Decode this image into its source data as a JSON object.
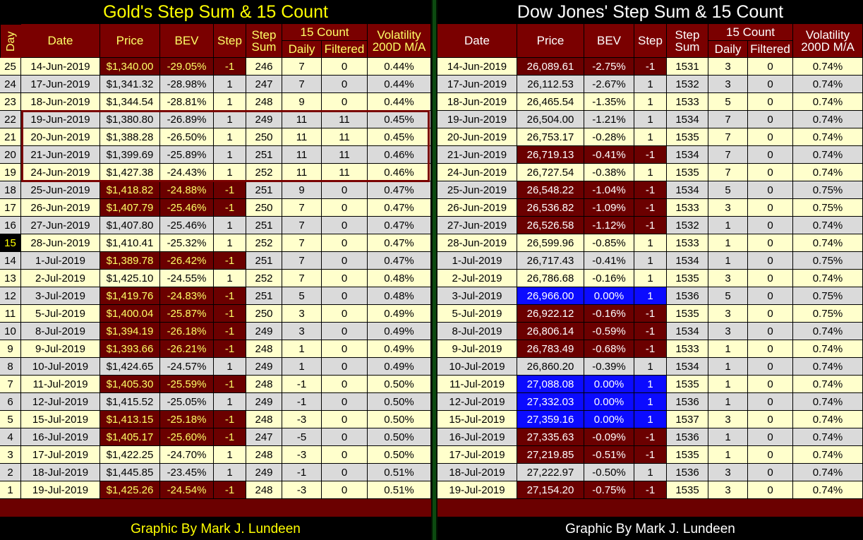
{
  "chart_data": [
    {
      "type": "table",
      "title": "Gold's Step Sum & 15 Count",
      "headers": {
        "day": "Day",
        "date": "Date",
        "price": "Price",
        "bev": "BEV",
        "step": "Step",
        "step_sum": "Step Sum",
        "fifteen_count": "15 Count",
        "daily": "Daily",
        "filtered": "Filtered",
        "volatility": "Volatility 200D M/A"
      },
      "rows": [
        {
          "day": "25",
          "date": "14-Jun-2019",
          "price": "$1,340.00",
          "bev": "-29.05%",
          "step": "-1",
          "sum": "246",
          "daily": "7",
          "filtered": "0",
          "vol": "0.44%"
        },
        {
          "day": "24",
          "date": "17-Jun-2019",
          "price": "$1,341.32",
          "bev": "-28.98%",
          "step": "1",
          "sum": "247",
          "daily": "7",
          "filtered": "0",
          "vol": "0.44%"
        },
        {
          "day": "23",
          "date": "18-Jun-2019",
          "price": "$1,344.54",
          "bev": "-28.81%",
          "step": "1",
          "sum": "248",
          "daily": "9",
          "filtered": "0",
          "vol": "0.44%"
        },
        {
          "day": "22",
          "date": "19-Jun-2019",
          "price": "$1,380.80",
          "bev": "-26.89%",
          "step": "1",
          "sum": "249",
          "daily": "11",
          "filtered": "11",
          "vol": "0.45%"
        },
        {
          "day": "21",
          "date": "20-Jun-2019",
          "price": "$1,388.28",
          "bev": "-26.50%",
          "step": "1",
          "sum": "250",
          "daily": "11",
          "filtered": "11",
          "vol": "0.45%"
        },
        {
          "day": "20",
          "date": "21-Jun-2019",
          "price": "$1,399.69",
          "bev": "-25.89%",
          "step": "1",
          "sum": "251",
          "daily": "11",
          "filtered": "11",
          "vol": "0.46%"
        },
        {
          "day": "19",
          "date": "24-Jun-2019",
          "price": "$1,427.38",
          "bev": "-24.43%",
          "step": "1",
          "sum": "252",
          "daily": "11",
          "filtered": "11",
          "vol": "0.46%"
        },
        {
          "day": "18",
          "date": "25-Jun-2019",
          "price": "$1,418.82",
          "bev": "-24.88%",
          "step": "-1",
          "sum": "251",
          "daily": "9",
          "filtered": "0",
          "vol": "0.47%"
        },
        {
          "day": "17",
          "date": "26-Jun-2019",
          "price": "$1,407.79",
          "bev": "-25.46%",
          "step": "-1",
          "sum": "250",
          "daily": "7",
          "filtered": "0",
          "vol": "0.47%"
        },
        {
          "day": "16",
          "date": "27-Jun-2019",
          "price": "$1,407.80",
          "bev": "-25.46%",
          "step": "1",
          "sum": "251",
          "daily": "7",
          "filtered": "0",
          "vol": "0.47%"
        },
        {
          "day": "15",
          "date": "28-Jun-2019",
          "price": "$1,410.41",
          "bev": "-25.32%",
          "step": "1",
          "sum": "252",
          "daily": "7",
          "filtered": "0",
          "vol": "0.47%"
        },
        {
          "day": "14",
          "date": "1-Jul-2019",
          "price": "$1,389.78",
          "bev": "-26.42%",
          "step": "-1",
          "sum": "251",
          "daily": "7",
          "filtered": "0",
          "vol": "0.47%"
        },
        {
          "day": "13",
          "date": "2-Jul-2019",
          "price": "$1,425.10",
          "bev": "-24.55%",
          "step": "1",
          "sum": "252",
          "daily": "7",
          "filtered": "0",
          "vol": "0.48%"
        },
        {
          "day": "12",
          "date": "3-Jul-2019",
          "price": "$1,419.76",
          "bev": "-24.83%",
          "step": "-1",
          "sum": "251",
          "daily": "5",
          "filtered": "0",
          "vol": "0.48%"
        },
        {
          "day": "11",
          "date": "5-Jul-2019",
          "price": "$1,400.04",
          "bev": "-25.87%",
          "step": "-1",
          "sum": "250",
          "daily": "3",
          "filtered": "0",
          "vol": "0.49%"
        },
        {
          "day": "10",
          "date": "8-Jul-2019",
          "price": "$1,394.19",
          "bev": "-26.18%",
          "step": "-1",
          "sum": "249",
          "daily": "3",
          "filtered": "0",
          "vol": "0.49%"
        },
        {
          "day": "9",
          "date": "9-Jul-2019",
          "price": "$1,393.66",
          "bev": "-26.21%",
          "step": "-1",
          "sum": "248",
          "daily": "1",
          "filtered": "0",
          "vol": "0.49%"
        },
        {
          "day": "8",
          "date": "10-Jul-2019",
          "price": "$1,424.65",
          "bev": "-24.57%",
          "step": "1",
          "sum": "249",
          "daily": "1",
          "filtered": "0",
          "vol": "0.49%"
        },
        {
          "day": "7",
          "date": "11-Jul-2019",
          "price": "$1,405.30",
          "bev": "-25.59%",
          "step": "-1",
          "sum": "248",
          "daily": "-1",
          "filtered": "0",
          "vol": "0.50%"
        },
        {
          "day": "6",
          "date": "12-Jul-2019",
          "price": "$1,415.52",
          "bev": "-25.05%",
          "step": "1",
          "sum": "249",
          "daily": "-1",
          "filtered": "0",
          "vol": "0.50%"
        },
        {
          "day": "5",
          "date": "15-Jul-2019",
          "price": "$1,413.15",
          "bev": "-25.18%",
          "step": "-1",
          "sum": "248",
          "daily": "-3",
          "filtered": "0",
          "vol": "0.50%"
        },
        {
          "day": "4",
          "date": "16-Jul-2019",
          "price": "$1,405.17",
          "bev": "-25.60%",
          "step": "-1",
          "sum": "247",
          "daily": "-5",
          "filtered": "0",
          "vol": "0.50%"
        },
        {
          "day": "3",
          "date": "17-Jul-2019",
          "price": "$1,422.25",
          "bev": "-24.70%",
          "step": "1",
          "sum": "248",
          "daily": "-3",
          "filtered": "0",
          "vol": "0.50%"
        },
        {
          "day": "2",
          "date": "18-Jul-2019",
          "price": "$1,445.85",
          "bev": "-23.45%",
          "step": "1",
          "sum": "249",
          "daily": "-1",
          "filtered": "0",
          "vol": "0.51%"
        },
        {
          "day": "1",
          "date": "19-Jul-2019",
          "price": "$1,425.26",
          "bev": "-24.54%",
          "step": "-1",
          "sum": "248",
          "daily": "-3",
          "filtered": "0",
          "vol": "0.51%"
        }
      ],
      "credit": "Graphic By Mark J. Lundeen"
    },
    {
      "type": "table",
      "title": "Dow Jones' Step Sum & 15 Count",
      "headers": {
        "date": "Date",
        "price": "Price",
        "bev": "BEV",
        "step": "Step",
        "step_sum": "Step Sum",
        "fifteen_count": "15 Count",
        "daily": "Daily",
        "filtered": "Filtered",
        "volatility": "Volatility 200D M/A"
      },
      "rows": [
        {
          "date": "14-Jun-2019",
          "price": "26,089.61",
          "bev": "-2.75%",
          "step": "-1",
          "sum": "1531",
          "daily": "3",
          "filtered": "0",
          "vol": "0.74%"
        },
        {
          "date": "17-Jun-2019",
          "price": "26,112.53",
          "bev": "-2.67%",
          "step": "1",
          "sum": "1532",
          "daily": "3",
          "filtered": "0",
          "vol": "0.74%"
        },
        {
          "date": "18-Jun-2019",
          "price": "26,465.54",
          "bev": "-1.35%",
          "step": "1",
          "sum": "1533",
          "daily": "5",
          "filtered": "0",
          "vol": "0.74%"
        },
        {
          "date": "19-Jun-2019",
          "price": "26,504.00",
          "bev": "-1.21%",
          "step": "1",
          "sum": "1534",
          "daily": "7",
          "filtered": "0",
          "vol": "0.74%"
        },
        {
          "date": "20-Jun-2019",
          "price": "26,753.17",
          "bev": "-0.28%",
          "step": "1",
          "sum": "1535",
          "daily": "7",
          "filtered": "0",
          "vol": "0.74%"
        },
        {
          "date": "21-Jun-2019",
          "price": "26,719.13",
          "bev": "-0.41%",
          "step": "-1",
          "sum": "1534",
          "daily": "7",
          "filtered": "0",
          "vol": "0.74%"
        },
        {
          "date": "24-Jun-2019",
          "price": "26,727.54",
          "bev": "-0.38%",
          "step": "1",
          "sum": "1535",
          "daily": "7",
          "filtered": "0",
          "vol": "0.74%"
        },
        {
          "date": "25-Jun-2019",
          "price": "26,548.22",
          "bev": "-1.04%",
          "step": "-1",
          "sum": "1534",
          "daily": "5",
          "filtered": "0",
          "vol": "0.75%"
        },
        {
          "date": "26-Jun-2019",
          "price": "26,536.82",
          "bev": "-1.09%",
          "step": "-1",
          "sum": "1533",
          "daily": "3",
          "filtered": "0",
          "vol": "0.75%"
        },
        {
          "date": "27-Jun-2019",
          "price": "26,526.58",
          "bev": "-1.12%",
          "step": "-1",
          "sum": "1532",
          "daily": "1",
          "filtered": "0",
          "vol": "0.74%"
        },
        {
          "date": "28-Jun-2019",
          "price": "26,599.96",
          "bev": "-0.85%",
          "step": "1",
          "sum": "1533",
          "daily": "1",
          "filtered": "0",
          "vol": "0.74%"
        },
        {
          "date": "1-Jul-2019",
          "price": "26,717.43",
          "bev": "-0.41%",
          "step": "1",
          "sum": "1534",
          "daily": "1",
          "filtered": "0",
          "vol": "0.75%"
        },
        {
          "date": "2-Jul-2019",
          "price": "26,786.68",
          "bev": "-0.16%",
          "step": "1",
          "sum": "1535",
          "daily": "3",
          "filtered": "0",
          "vol": "0.74%"
        },
        {
          "date": "3-Jul-2019",
          "price": "26,966.00",
          "bev": "0.00%",
          "step": "1",
          "sum": "1536",
          "daily": "5",
          "filtered": "0",
          "vol": "0.75%"
        },
        {
          "date": "5-Jul-2019",
          "price": "26,922.12",
          "bev": "-0.16%",
          "step": "-1",
          "sum": "1535",
          "daily": "3",
          "filtered": "0",
          "vol": "0.75%"
        },
        {
          "date": "8-Jul-2019",
          "price": "26,806.14",
          "bev": "-0.59%",
          "step": "-1",
          "sum": "1534",
          "daily": "3",
          "filtered": "0",
          "vol": "0.74%"
        },
        {
          "date": "9-Jul-2019",
          "price": "26,783.49",
          "bev": "-0.68%",
          "step": "-1",
          "sum": "1533",
          "daily": "1",
          "filtered": "0",
          "vol": "0.74%"
        },
        {
          "date": "10-Jul-2019",
          "price": "26,860.20",
          "bev": "-0.39%",
          "step": "1",
          "sum": "1534",
          "daily": "1",
          "filtered": "0",
          "vol": "0.74%"
        },
        {
          "date": "11-Jul-2019",
          "price": "27,088.08",
          "bev": "0.00%",
          "step": "1",
          "sum": "1535",
          "daily": "1",
          "filtered": "0",
          "vol": "0.74%"
        },
        {
          "date": "12-Jul-2019",
          "price": "27,332.03",
          "bev": "0.00%",
          "step": "1",
          "sum": "1536",
          "daily": "1",
          "filtered": "0",
          "vol": "0.74%"
        },
        {
          "date": "15-Jul-2019",
          "price": "27,359.16",
          "bev": "0.00%",
          "step": "1",
          "sum": "1537",
          "daily": "3",
          "filtered": "0",
          "vol": "0.74%"
        },
        {
          "date": "16-Jul-2019",
          "price": "27,335.63",
          "bev": "-0.09%",
          "step": "-1",
          "sum": "1536",
          "daily": "1",
          "filtered": "0",
          "vol": "0.74%"
        },
        {
          "date": "17-Jul-2019",
          "price": "27,219.85",
          "bev": "-0.51%",
          "step": "-1",
          "sum": "1535",
          "daily": "1",
          "filtered": "0",
          "vol": "0.74%"
        },
        {
          "date": "18-Jul-2019",
          "price": "27,222.97",
          "bev": "-0.50%",
          "step": "1",
          "sum": "1536",
          "daily": "3",
          "filtered": "0",
          "vol": "0.74%"
        },
        {
          "date": "19-Jul-2019",
          "price": "27,154.20",
          "bev": "-0.75%",
          "step": "-1",
          "sum": "1535",
          "daily": "3",
          "filtered": "0",
          "vol": "0.74%"
        }
      ],
      "credit": "Graphic By Mark J. Lundeen"
    }
  ],
  "colors": {
    "header_bg": "#7a0000",
    "down_bg": "#6b0000",
    "row_light": "#ffffcc",
    "row_gray": "#dadada",
    "new_high_bg": "#0b0bff",
    "gold_title": "#ffff00",
    "dow_title": "#ffffff",
    "divider": "#0c4a10"
  }
}
